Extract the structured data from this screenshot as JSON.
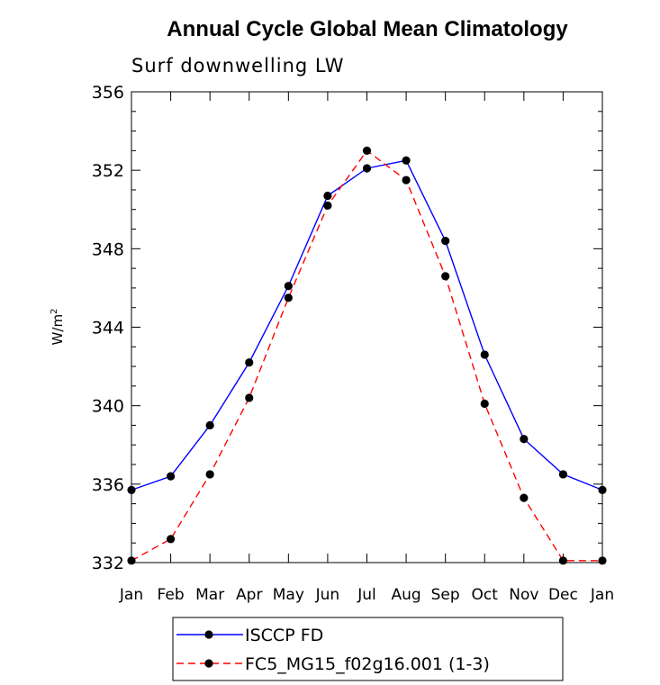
{
  "chart_data": {
    "type": "line",
    "title": "Annual Cycle Global Mean Climatology",
    "subtitle": "Surf downwelling LW",
    "xlabel": "",
    "ylabel_main": "W/m",
    "ylabel_sup": "2",
    "categories": [
      "Jan",
      "Feb",
      "Mar",
      "Apr",
      "May",
      "Jun",
      "Jul",
      "Aug",
      "Sep",
      "Oct",
      "Nov",
      "Dec",
      "Jan"
    ],
    "ylim": [
      332,
      356
    ],
    "yticks": [
      332,
      336,
      340,
      344,
      348,
      352,
      356
    ],
    "series": [
      {
        "name": "ISCCP FD",
        "color": "#0000ff",
        "dashed": false,
        "values": [
          335.7,
          336.4,
          339.0,
          342.2,
          346.1,
          350.7,
          352.1,
          352.5,
          348.4,
          342.6,
          338.3,
          336.5,
          335.7
        ]
      },
      {
        "name": "FC5_MG15_f02g16.001 (1-3)",
        "color": "#ff0000",
        "dashed": true,
        "values": [
          332.1,
          333.2,
          336.5,
          340.4,
          345.5,
          350.2,
          353.0,
          351.5,
          346.6,
          340.1,
          335.3,
          332.1,
          332.1
        ]
      }
    ],
    "grid": false,
    "legend_position": "bottom"
  }
}
